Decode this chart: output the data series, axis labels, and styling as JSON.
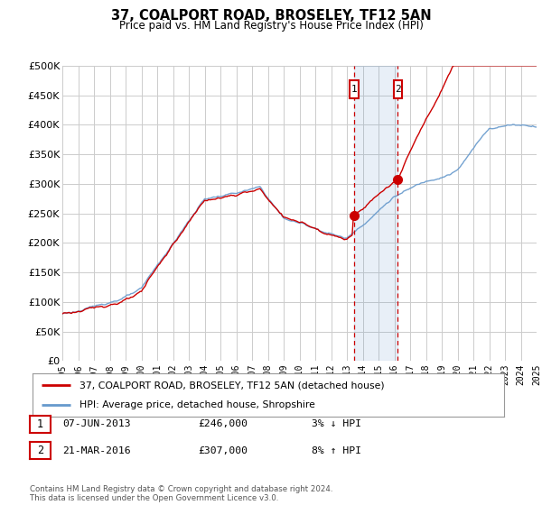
{
  "title": "37, COALPORT ROAD, BROSELEY, TF12 5AN",
  "subtitle": "Price paid vs. HM Land Registry's House Price Index (HPI)",
  "legend_line1": "37, COALPORT ROAD, BROSELEY, TF12 5AN (detached house)",
  "legend_line2": "HPI: Average price, detached house, Shropshire",
  "marker1_date": "07-JUN-2013",
  "marker1_price": "£246,000",
  "marker1_hpi": "3% ↓ HPI",
  "marker2_date": "21-MAR-2016",
  "marker2_price": "£307,000",
  "marker2_hpi": "8% ↑ HPI",
  "footnote": "Contains HM Land Registry data © Crown copyright and database right 2024.\nThis data is licensed under the Open Government Licence v3.0.",
  "property_color": "#cc0000",
  "hpi_color": "#6699cc",
  "ylim": [
    0,
    500000
  ],
  "yticks": [
    0,
    50000,
    100000,
    150000,
    200000,
    250000,
    300000,
    350000,
    400000,
    450000,
    500000
  ],
  "ytick_labels": [
    "£0",
    "£50K",
    "£100K",
    "£150K",
    "£200K",
    "£250K",
    "£300K",
    "£350K",
    "£400K",
    "£450K",
    "£500K"
  ],
  "xstart": 1995,
  "xend": 2025,
  "marker1_x": 2013.44,
  "marker2_x": 2016.22,
  "bg_color": "#ffffff",
  "grid_color": "#cccccc"
}
